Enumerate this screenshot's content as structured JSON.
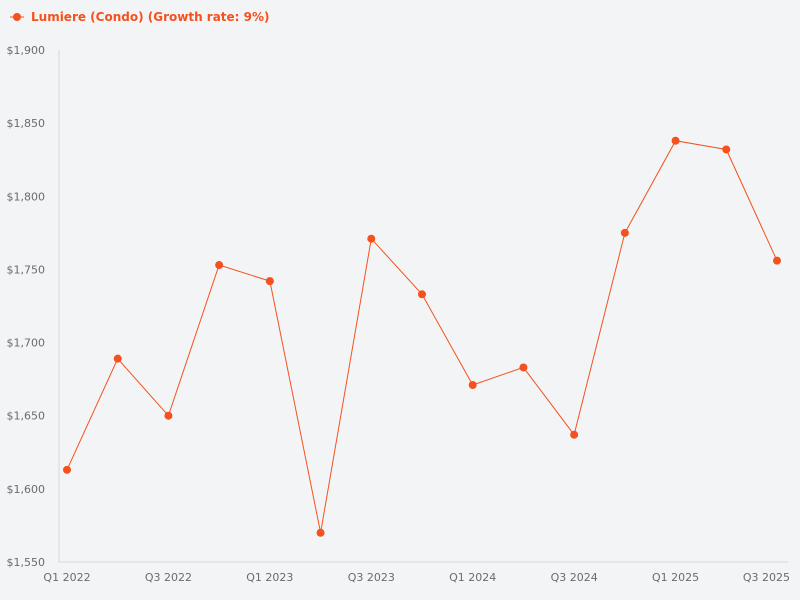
{
  "chart_data": {
    "type": "line",
    "categories": [
      "Q1 2022",
      "Q2 2022",
      "Q3 2022",
      "Q4 2022",
      "Q1 2023",
      "Q2 2023",
      "Q3 2023",
      "Q4 2023",
      "Q1 2024",
      "Q2 2024",
      "Q3 2024",
      "Q4 2024",
      "Q1 2025",
      "Q2 2025",
      "Q3 2025"
    ],
    "x_tick_labels": [
      "Q1 2022",
      "Q3 2022",
      "Q1 2023",
      "Q3 2023",
      "Q1 2024",
      "Q3 2024",
      "Q1 2025",
      "Q3 2025"
    ],
    "series": [
      {
        "name": "Lumiere (Condo) (Growth rate: 9%)",
        "color": "#f4511e",
        "values": [
          1613,
          1689,
          1650,
          1753,
          1742,
          1570,
          1771,
          1733,
          1671,
          1683,
          1637,
          1775,
          1838,
          1832,
          1756
        ]
      }
    ],
    "y_tick_labels": [
      "$1,550",
      "$1,600",
      "$1,650",
      "$1,700",
      "$1,750",
      "$1,800",
      "$1,850",
      "$1,900"
    ],
    "y_ticks": [
      1550,
      1600,
      1650,
      1700,
      1750,
      1800,
      1850,
      1900
    ],
    "ylim": [
      1550,
      1900
    ],
    "legend_position": "top-left",
    "grid": false,
    "title": "",
    "xlabel": "",
    "ylabel": ""
  },
  "colors": {
    "background": "#f3f4f6",
    "axis": "#d6d8e0",
    "tick_text": "#6b6b6b",
    "series": "#f4511e"
  }
}
